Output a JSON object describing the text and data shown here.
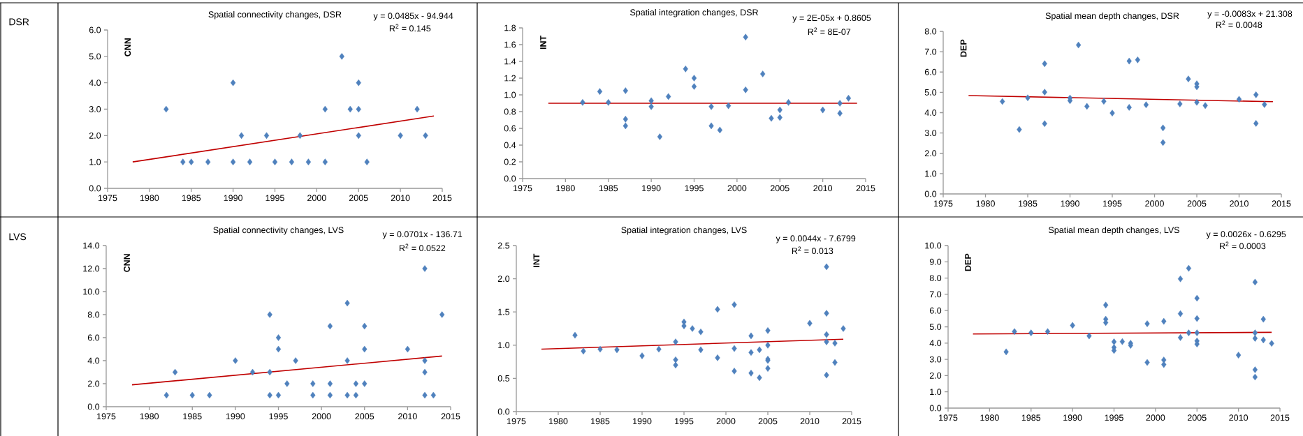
{
  "chart_data": [
    {
      "type": "scatter",
      "title": "Spatial connectivity changes, DSR",
      "ylabel": "CNN",
      "marker": "diamond",
      "annotations": [
        "y = 0.0485x - 94.944",
        "R$^{2}$ = 0.145",
        "DSR"
      ],
      "xlim": [
        1975,
        2015
      ],
      "xticks": [
        1975,
        1980,
        1985,
        1990,
        1995,
        2000,
        2005,
        2010,
        2015
      ],
      "ylim": [
        0,
        6
      ],
      "yticks": [
        {
          "value": 0,
          "label": "0.0"
        },
        {
          "value": 1,
          "label": "1.0"
        },
        {
          "value": 2,
          "label": "2.0"
        },
        {
          "value": 3,
          "label": "3.0"
        },
        {
          "value": 4,
          "label": "4.0"
        },
        {
          "value": 5,
          "label": "5.0"
        },
        {
          "value": 6,
          "label": "6.0"
        }
      ],
      "series": [
        {
          "color": "#4f81bd",
          "x": [
            1982,
            1984,
            1985,
            1987,
            1990,
            1990,
            1991,
            1992,
            1994,
            1995,
            1997,
            1998,
            1999,
            2001,
            2001,
            2003,
            2004,
            2005,
            2005,
            2005,
            2006,
            2010,
            2012,
            2013
          ],
          "values": [
            3,
            1,
            1,
            1,
            4,
            1,
            2,
            1,
            2,
            1,
            1,
            2,
            1,
            3,
            1,
            5,
            3,
            4,
            3,
            2,
            1,
            2,
            3,
            2
          ]
        },
        {
          "type": "line",
          "color": "#c00000",
          "marker": "none",
          "x": [
            1978,
            2014
          ],
          "values": [
            1.0,
            2.74
          ]
        }
      ]
    },
    {
      "type": "scatter",
      "title": "Spatial integration changes, DSR",
      "ylabel": "INT",
      "marker": "diamond",
      "annotations": [
        "y = 2E-05x + 0.8605",
        "R$^{2}$ = 8E-07"
      ],
      "xlim": [
        1975,
        2015
      ],
      "xticks": [
        1975,
        1980,
        1985,
        1990,
        1995,
        2000,
        2005,
        2010,
        2015
      ],
      "ylim": [
        0,
        1.8
      ],
      "yticks": [
        {
          "value": 0,
          "label": "0.0"
        },
        0.2,
        0.4,
        0.6,
        0.8,
        {
          "value": 1,
          "label": "1.0"
        },
        1.2,
        1.4,
        1.6,
        1.8
      ],
      "series": [
        {
          "color": "#4f81bd",
          "x": [
            1982,
            1984,
            1985,
            1987,
            1987,
            1987,
            1990,
            1990,
            1991,
            1992,
            1994,
            1995,
            1995,
            1997,
            1997,
            1998,
            1999,
            2001,
            2001,
            2003,
            2004,
            2005,
            2005,
            2006,
            2010,
            2012,
            2012,
            2013
          ],
          "values": [
            0.91,
            1.04,
            0.91,
            1.05,
            0.71,
            0.63,
            0.93,
            0.86,
            0.5,
            0.98,
            1.31,
            1.2,
            1.1,
            0.86,
            0.63,
            0.58,
            0.87,
            1.69,
            1.06,
            1.25,
            0.72,
            0.82,
            0.73,
            0.91,
            0.82,
            0.9,
            0.78,
            0.96
          ]
        },
        {
          "type": "line",
          "color": "#c00000",
          "marker": "none",
          "x": [
            1978,
            2014
          ],
          "values": [
            0.9,
            0.9
          ]
        }
      ]
    },
    {
      "type": "scatter",
      "title": "Spatial mean depth changes, DSR",
      "ylabel": "DEP",
      "marker": "diamond",
      "annotations": [
        "y = -0.0083x + 21.308",
        "R$^{2}$ = 0.0048"
      ],
      "xlim": [
        1975,
        2015
      ],
      "xticks": [
        1975,
        1980,
        1985,
        1990,
        1995,
        2000,
        2005,
        2010,
        2015
      ],
      "ylim": [
        0,
        8
      ],
      "yticks": [
        {
          "value": 0,
          "label": "0.0"
        },
        {
          "value": 1,
          "label": "1.0"
        },
        {
          "value": 2,
          "label": "2.0"
        },
        {
          "value": 3,
          "label": "3.0"
        },
        {
          "value": 4,
          "label": "4.0"
        },
        {
          "value": 5,
          "label": "5.0"
        },
        {
          "value": 6,
          "label": "6.0"
        },
        {
          "value": 7,
          "label": "7.0"
        },
        {
          "value": 8,
          "label": "8.0"
        }
      ],
      "series": [
        {
          "color": "#4f81bd",
          "x": [
            1982,
            1984,
            1985,
            1987,
            1987,
            1987,
            1990,
            1990,
            1991,
            1992,
            1994,
            1995,
            1997,
            1997,
            1998,
            1999,
            2001,
            2001,
            2003,
            2004,
            2005,
            2005,
            2005,
            2006,
            2010,
            2012,
            2012,
            2013
          ],
          "values": [
            4.55,
            3.17,
            4.73,
            6.41,
            5.01,
            3.46,
            4.72,
            4.59,
            7.33,
            4.31,
            4.56,
            3.98,
            6.54,
            4.26,
            6.6,
            4.39,
            3.25,
            2.53,
            4.43,
            5.66,
            5.42,
            5.27,
            4.51,
            4.35,
            4.66,
            4.88,
            3.47,
            4.4
          ]
        },
        {
          "type": "line",
          "color": "#c00000",
          "marker": "none",
          "x": [
            1978,
            2014
          ],
          "values": [
            4.84,
            4.54
          ]
        }
      ]
    },
    {
      "type": "scatter",
      "title": "Spatial connectivity changes, LVS",
      "ylabel": "CNN",
      "marker": "diamond",
      "annotations": [
        "y = 0.0701x - 136.71",
        "R$^{2}$ = 0.0522",
        "LVS"
      ],
      "xlim": [
        1975,
        2015
      ],
      "xticks": [
        1975,
        1980,
        1985,
        1990,
        1995,
        2000,
        2005,
        2010,
        2015
      ],
      "ylim": [
        0,
        14
      ],
      "yticks": [
        {
          "value": 0,
          "label": "0.0"
        },
        {
          "value": 2,
          "label": "2.0"
        },
        {
          "value": 4,
          "label": "4.0"
        },
        {
          "value": 6,
          "label": "6.0"
        },
        {
          "value": 8,
          "label": "8.0"
        },
        {
          "value": 10,
          "label": "10.0"
        },
        {
          "value": 12,
          "label": "12.0"
        },
        {
          "value": 14,
          "label": "14.0"
        }
      ],
      "series": [
        {
          "color": "#4f81bd",
          "x": [
            1982,
            1983,
            1985,
            1987,
            1990,
            1992,
            1994,
            1994,
            1994,
            1995,
            1995,
            1995,
            1996,
            1997,
            1999,
            1999,
            2001,
            2001,
            2001,
            2003,
            2003,
            2003,
            2004,
            2004,
            2005,
            2005,
            2005,
            2010,
            2012,
            2012,
            2012,
            2012,
            2013,
            2014
          ],
          "values": [
            1,
            3,
            1,
            1,
            4,
            3,
            8,
            3,
            1,
            6,
            5,
            1,
            2,
            4,
            2,
            1,
            7,
            2,
            1,
            9,
            4,
            1,
            2,
            1,
            7,
            5,
            2,
            5,
            12,
            4,
            3,
            1,
            1,
            8
          ]
        },
        {
          "type": "line",
          "color": "#c00000",
          "marker": "none",
          "x": [
            1978,
            2014
          ],
          "values": [
            1.9,
            4.4
          ]
        }
      ]
    },
    {
      "type": "scatter",
      "title": "Spatial integration changes, LVS",
      "ylabel": "INT",
      "marker": "diamond",
      "annotations": [
        "y = 0.0044x - 7.6799",
        "R$^{2}$ = 0.013"
      ],
      "xlim": [
        1975,
        2015
      ],
      "xticks": [
        1975,
        1980,
        1985,
        1990,
        1995,
        2000,
        2005,
        2010,
        2015
      ],
      "ylim": [
        0,
        2.5
      ],
      "yticks": [
        {
          "value": 0,
          "label": "0.0"
        },
        0.5,
        {
          "value": 1,
          "label": "1.0"
        },
        1.5,
        {
          "value": 2,
          "label": "2.0"
        },
        2.5
      ],
      "series": [
        {
          "color": "#4f81bd",
          "x": [
            1982,
            1983,
            1985,
            1987,
            1990,
            1992,
            1994,
            1994,
            1994,
            1995,
            1995,
            1996,
            1997,
            1997,
            1999,
            1999,
            2001,
            2001,
            2001,
            2003,
            2003,
            2003,
            2004,
            2004,
            2005,
            2005,
            2005,
            2005,
            2005,
            2010,
            2012,
            2012,
            2012,
            2012,
            2012,
            2013,
            2013,
            2014
          ],
          "values": [
            1.15,
            0.91,
            0.94,
            0.93,
            0.84,
            0.94,
            1.05,
            0.78,
            0.7,
            1.35,
            1.29,
            1.25,
            1.2,
            0.93,
            1.54,
            0.81,
            1.61,
            0.95,
            0.61,
            1.14,
            0.89,
            0.58,
            0.93,
            0.51,
            1.22,
            1.0,
            0.79,
            0.77,
            0.65,
            1.33,
            2.18,
            1.48,
            1.16,
            1.05,
            0.55,
            1.03,
            0.74,
            1.25
          ]
        },
        {
          "type": "line",
          "color": "#c00000",
          "marker": "none",
          "x": [
            1978,
            2014
          ],
          "values": [
            0.94,
            1.09
          ]
        }
      ]
    },
    {
      "type": "scatter",
      "title": "Spatial mean depth changes, LVS",
      "ylabel": "DEP",
      "marker": "diamond",
      "annotations": [
        "y = 0.0026x - 0.6295",
        "R$^{2}$ = 0.0003"
      ],
      "xlim": [
        1975,
        2015
      ],
      "xticks": [
        1975,
        1980,
        1985,
        1990,
        1995,
        2000,
        2005,
        2010,
        2015
      ],
      "ylim": [
        0,
        10
      ],
      "yticks": [
        {
          "value": 0,
          "label": "0.0"
        },
        {
          "value": 1,
          "label": "1.0"
        },
        {
          "value": 2,
          "label": "2.0"
        },
        {
          "value": 3,
          "label": "3.0"
        },
        {
          "value": 4,
          "label": "4.0"
        },
        {
          "value": 5,
          "label": "5.0"
        },
        {
          "value": 6,
          "label": "6.0"
        },
        {
          "value": 7,
          "label": "7.0"
        },
        {
          "value": 8,
          "label": "8.0"
        },
        {
          "value": 9,
          "label": "9.0"
        },
        {
          "value": 10,
          "label": "10.0"
        }
      ],
      "series": [
        {
          "color": "#4f81bd",
          "x": [
            1982,
            1983,
            1985,
            1987,
            1990,
            1992,
            1994,
            1994,
            1994,
            1995,
            1995,
            1995,
            1996,
            1997,
            1997,
            1999,
            1999,
            2001,
            2001,
            2001,
            2003,
            2003,
            2003,
            2004,
            2004,
            2005,
            2005,
            2005,
            2005,
            2005,
            2010,
            2012,
            2012,
            2012,
            2012,
            2012,
            2013,
            2013,
            2014
          ],
          "values": [
            3.46,
            4.71,
            4.63,
            4.71,
            5.09,
            4.44,
            6.34,
            5.47,
            5.26,
            4.08,
            3.73,
            3.54,
            4.09,
            3.99,
            3.86,
            5.19,
            2.81,
            5.34,
            2.96,
            2.68,
            7.95,
            5.81,
            4.34,
            8.6,
            4.63,
            6.76,
            5.51,
            4.63,
            4.13,
            3.94,
            3.26,
            7.75,
            4.63,
            4.29,
            2.36,
            1.91,
            5.47,
            4.19,
            3.98
          ]
        },
        {
          "type": "line",
          "color": "#c00000",
          "marker": "none",
          "x": [
            1978,
            2014
          ],
          "values": [
            4.56,
            4.66
          ]
        }
      ]
    }
  ]
}
